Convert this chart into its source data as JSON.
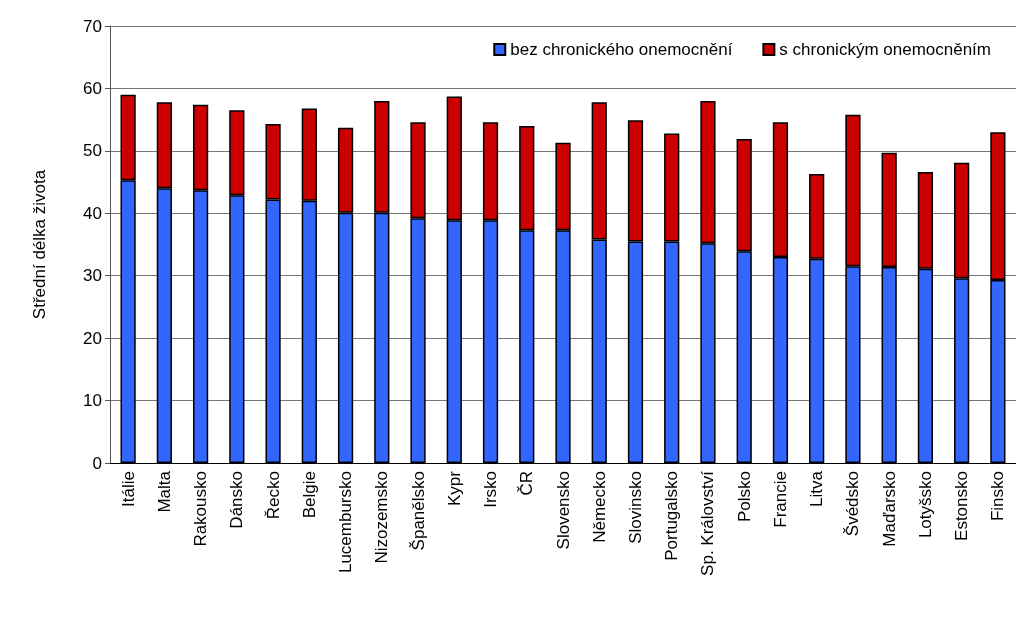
{
  "chart_data": {
    "type": "bar",
    "stacked": true,
    "ylabel": "Střední délka života",
    "categories": [
      "Itálie",
      "Malta",
      "Rakousko",
      "Dánsko",
      "Řecko",
      "Belgie",
      "Lucembursko",
      "Nizozemsko",
      "Španělsko",
      "Kypr",
      "Irsko",
      "ČR",
      "Slovensko",
      "Německo",
      "Slovinsko",
      "Portugalsko",
      "Sp. Království",
      "Polsko",
      "Francie",
      "Litva",
      "Švédsko",
      "Maďarsko",
      "Lotyšsko",
      "Estonsko",
      "Finsko"
    ],
    "series": [
      {
        "name": "bez chronického onemocnění",
        "color": "#3366ff",
        "values": [
          45.3,
          44,
          43.7,
          42.9,
          42.2,
          42,
          40.1,
          40.1,
          39.2,
          38.9,
          38.9,
          37.3,
          37.3,
          35.8,
          35.5,
          35.5,
          35.2,
          33.9,
          33,
          32.7,
          31.5,
          31.4,
          31.1,
          29.6,
          29.3
        ]
      },
      {
        "name": "s chronickým onemocněním",
        "color": "#cc0000",
        "values": [
          13.7,
          13.8,
          13.7,
          13.6,
          12.1,
          14.8,
          13.6,
          17.9,
          15.4,
          19.8,
          15.7,
          16.7,
          14,
          22,
          19.4,
          17.3,
          22.8,
          18,
          21.6,
          13.6,
          24.3,
          18.3,
          15.5,
          18.5,
          23.7
        ]
      }
    ],
    "ylim": [
      0,
      70
    ],
    "yticks": [
      0,
      10,
      20,
      30,
      40,
      50,
      60,
      70
    ],
    "grid": "y",
    "legend": "top right"
  }
}
